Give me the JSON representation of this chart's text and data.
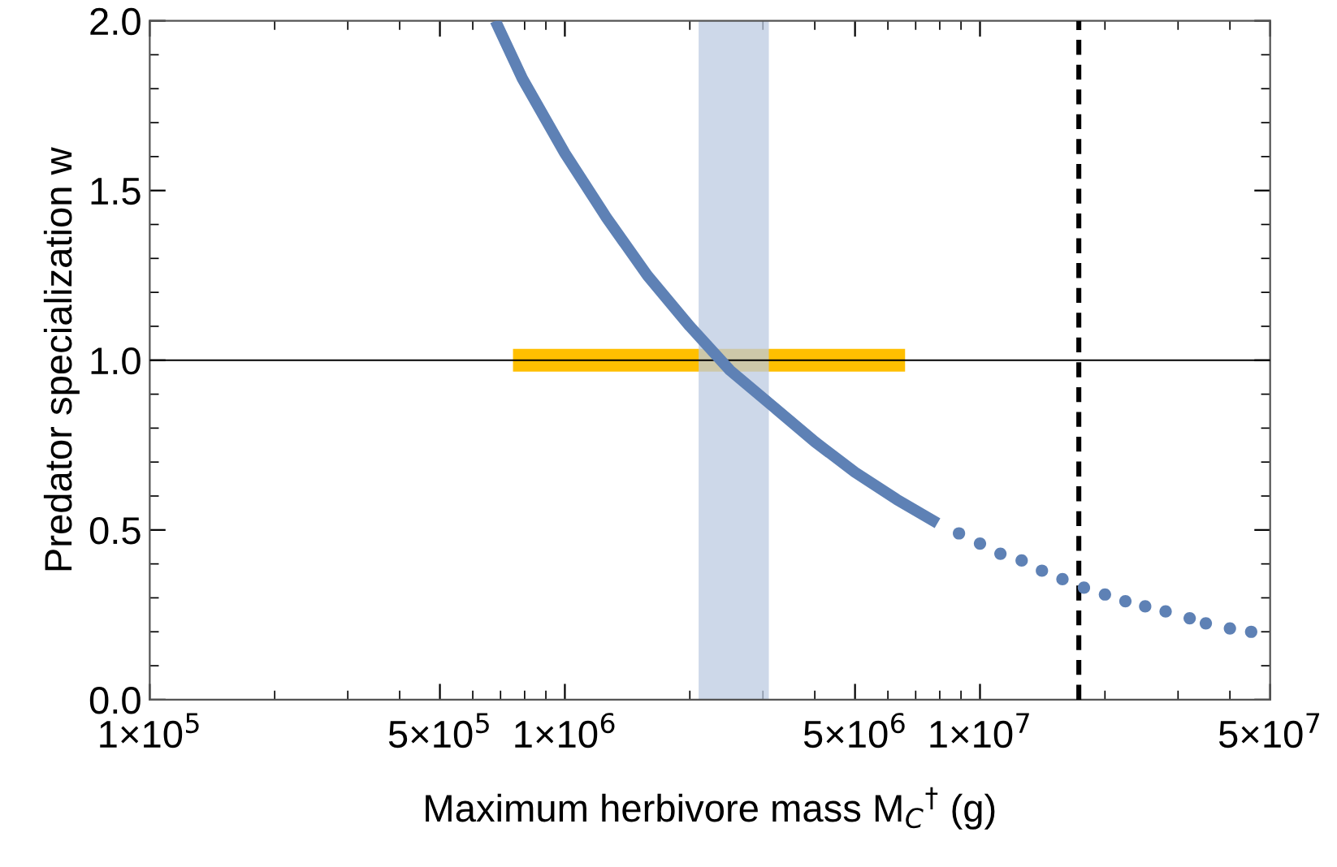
{
  "chart_data": {
    "type": "line",
    "xlabel": "Maximum herbivore mass M$_{C}$$^{†}$ (g)",
    "ylabel": "Predator specialization w",
    "log": "x",
    "xlim": [
      100000,
      50000000
    ],
    "xticks": [
      {
        "value": 100000,
        "label": "1×10$^{5}$"
      },
      {
        "value": 500000,
        "label": "5×10$^{5}$"
      },
      {
        "value": 1000000,
        "label": "1×10$^{6}$"
      },
      {
        "value": 5000000,
        "label": "5×10$^{6}$"
      },
      {
        "value": 10000000,
        "label": "1×10$^{7}$"
      },
      {
        "value": 50000000,
        "label": "5×10$^{7}$"
      }
    ],
    "ylim": [
      0,
      2.0
    ],
    "yticks": [
      {
        "value": 0,
        "label": "0.0"
      },
      {
        "value": 0.5,
        "label": "0.5"
      },
      {
        "value": 1.0,
        "label": "1.0"
      },
      {
        "value": 1.5,
        "label": "1.5"
      },
      {
        "value": 2.0,
        "label": "2.0"
      }
    ],
    "grid": false,
    "series": [
      {
        "color": "#ffbf00",
        "x": [
          750000,
          6600000
        ],
        "values": [
          1.0,
          1.0
        ]
      },
      {
        "color": "#5e81b5",
        "x": [
          680000,
          790000,
          1000000,
          1260000,
          1580000,
          2000000,
          2500000,
          3200000,
          4000000,
          5000000,
          6300000,
          7900000
        ],
        "values": [
          2.0,
          1.83,
          1.61,
          1.42,
          1.25,
          1.1,
          0.97,
          0.86,
          0.76,
          0.67,
          0.59,
          0.52
        ]
      },
      {
        "type": "scatter",
        "marker": "circle",
        "color": "#5e81b5",
        "x": [
          8900000,
          10000000,
          11200000,
          12600000,
          14100000,
          15800000,
          17800000,
          20000000,
          22400000,
          25000000,
          28000000,
          32000000,
          35000000,
          40000000,
          45000000
        ],
        "values": [
          0.49,
          0.46,
          0.43,
          0.41,
          0.38,
          0.355,
          0.33,
          0.31,
          0.29,
          0.275,
          0.26,
          0.24,
          0.225,
          0.21,
          0.2
        ]
      }
    ],
    "ref_lines": [
      {
        "axis": "y",
        "value": 1.0,
        "color": "#000000",
        "line_style": "solid"
      },
      {
        "axis": "x",
        "value": 17300000,
        "color": "#000000",
        "line_style": "dashed"
      }
    ],
    "bands": [
      {
        "axis": "x",
        "from": 2100000,
        "to": 3100000,
        "color": "#bccbe2"
      }
    ]
  }
}
